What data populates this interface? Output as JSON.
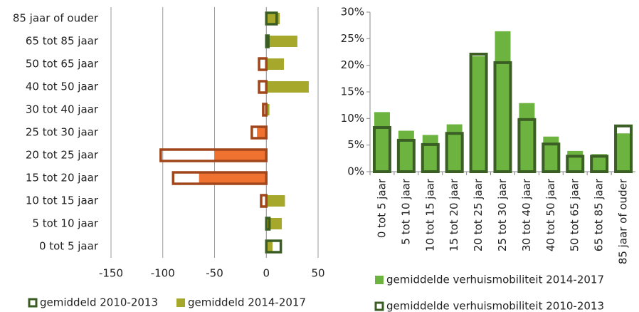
{
  "chart_data": [
    {
      "type": "bar",
      "orientation": "horizontal",
      "categories": [
        "85 jaar of ouder",
        "65 tot 85 jaar",
        "50 tot 65 jaar",
        "40 tot 50 jaar",
        "30 tot 40 jaar",
        "25 tot 30 jaar",
        "20 tot 25 jaar",
        "15 tot 20 jaar",
        "10 tot 15 jaar",
        "5 tot 10 jaar",
        "0 tot 5 jaar"
      ],
      "series": [
        {
          "name": "gemiddeld 2014-2017",
          "style": "fill",
          "color": "#a5a82a",
          "negative_color": "#ef7230",
          "values": [
            13,
            30,
            17,
            41,
            3,
            -9,
            -50,
            -65,
            18,
            15,
            6
          ]
        },
        {
          "name": "gemiddeld 2010-2013",
          "style": "outline",
          "color": "#3a5d23",
          "negative_color": "#a0461a",
          "values": [
            10,
            2,
            -7,
            -7,
            -3,
            -14,
            -102,
            -90,
            -5,
            3,
            14
          ]
        }
      ],
      "xlim": [
        -150,
        50
      ],
      "xticks": [
        -150,
        -100,
        -50,
        0,
        50
      ],
      "grid": true,
      "legend": "bottom"
    },
    {
      "type": "bar",
      "orientation": "vertical",
      "categories": [
        "0 tot 5 jaar",
        "5 tot 10 jaar",
        "10 tot 15 jaar",
        "15 tot 20 jaar",
        "20 tot 25 jaar",
        "25 tot 30 jaar",
        "30 tot 40 jaar",
        "40 tot 50 jaar",
        "50 tot 65 jaar",
        "65 tot 85 jaar",
        "85 jaar of ouder"
      ],
      "series": [
        {
          "name": "gemiddelde verhuismobiliteit 2014-2017",
          "style": "fill",
          "color": "#6db33f",
          "values": [
            11.2,
            7.7,
            6.9,
            8.9,
            21.7,
            26.4,
            12.9,
            6.6,
            3.9,
            3.3,
            7.2
          ]
        },
        {
          "name": "gemiddelde verhuismobiliteit 2010-2013",
          "style": "outline",
          "color": "#3b5e24",
          "values": [
            8.3,
            5.9,
            5.1,
            7.2,
            22.1,
            20.5,
            9.8,
            5.2,
            2.9,
            2.9,
            8.6
          ]
        }
      ],
      "ylim": [
        0,
        30
      ],
      "yticks": [
        {
          "value": 0,
          "label": "0%"
        },
        {
          "value": 5,
          "label": "5%"
        },
        {
          "value": 10,
          "label": "10%"
        },
        {
          "value": 15,
          "label": "15%"
        },
        {
          "value": 20,
          "label": "20%"
        },
        {
          "value": 25,
          "label": "25%"
        },
        {
          "value": 30,
          "label": "30%"
        }
      ],
      "grid": false,
      "legend": "bottom"
    }
  ]
}
